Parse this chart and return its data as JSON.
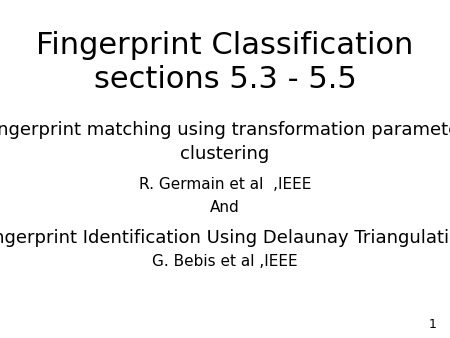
{
  "background_color": "#ffffff",
  "title_line1": "Fingerprint Classification",
  "title_line2": "sections 5.3 - 5.5",
  "title_fontsize": 22,
  "title_fontweight": "normal",
  "body_fontsize": 13,
  "small_fontsize": 11,
  "line1": "Fingerprint matching using transformation parameter",
  "line2": "clustering",
  "line3": "R. Germain et al  ,IEEE",
  "line4": "And",
  "line5": "Fingerprint Identification Using Delaunay Triangulation",
  "line6": "G. Bebis et al ,IEEE",
  "slide_number": "1",
  "slide_number_fontsize": 9,
  "text_color": "#000000",
  "font_family": "DejaVu Sans"
}
